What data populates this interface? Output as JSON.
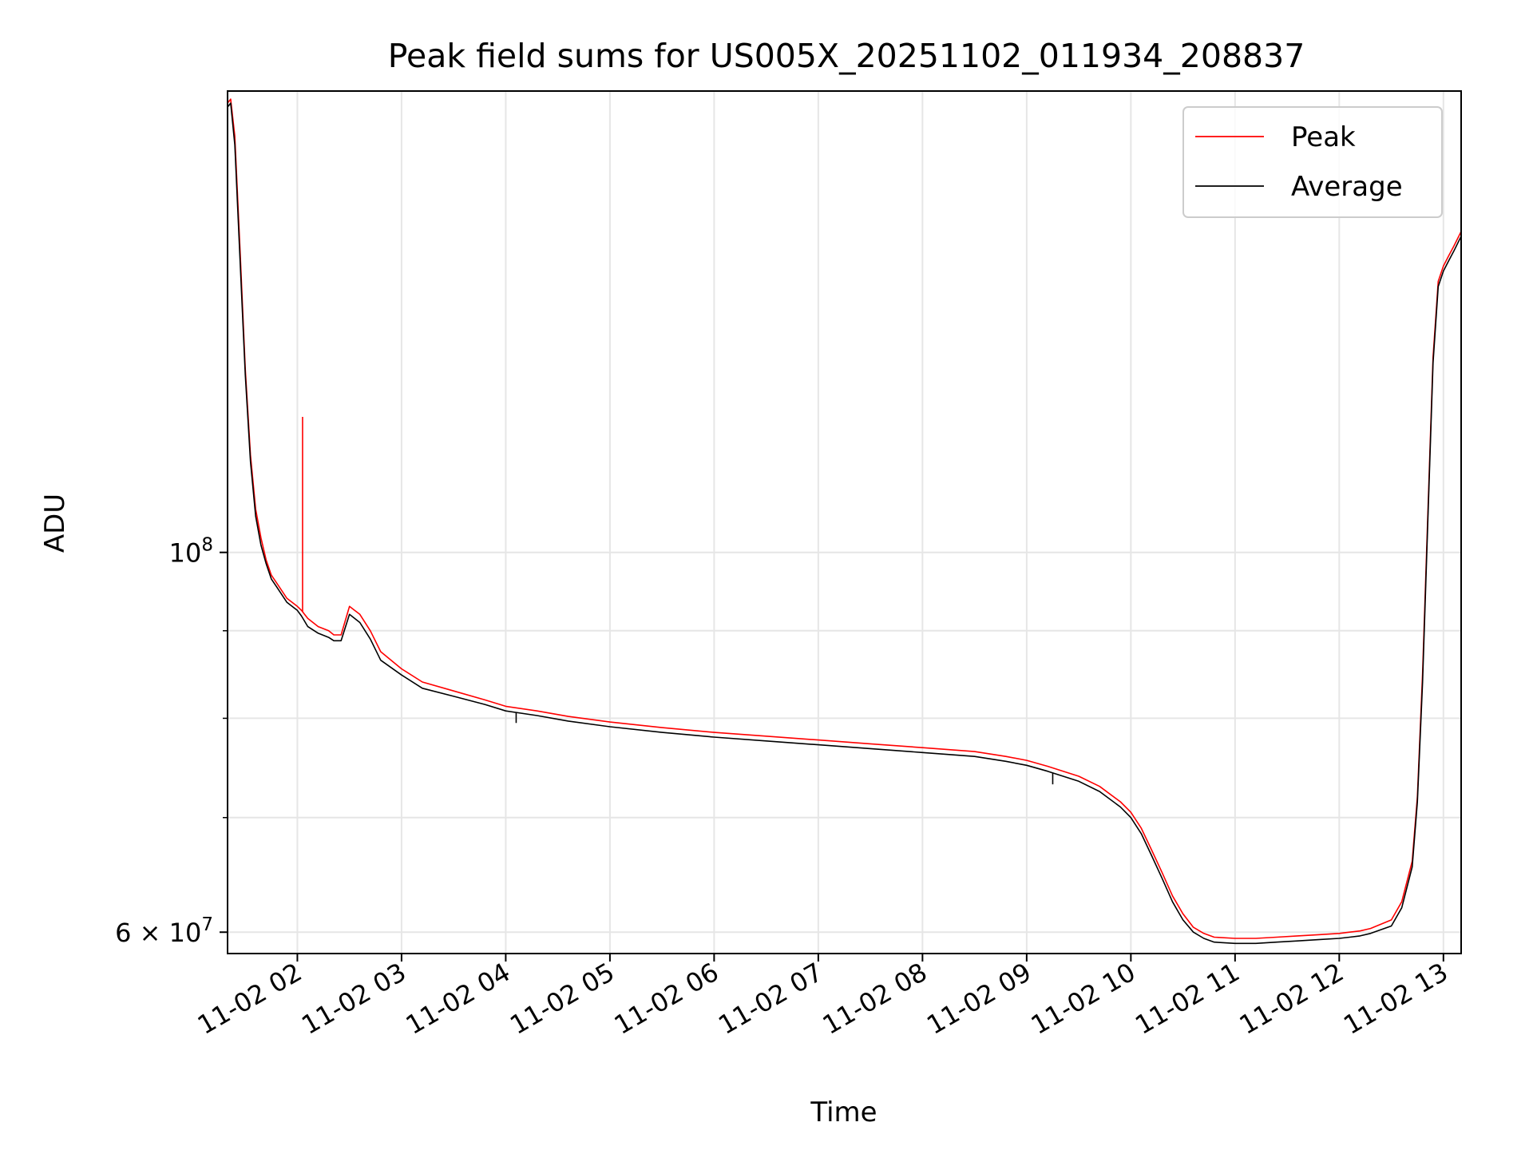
{
  "chart_data": {
    "type": "line",
    "title": "Peak field sums for US005X_20251102_011934_208837",
    "xlabel": "Time",
    "ylabel": "ADU",
    "yscale": "log",
    "xlim": [
      1.33,
      13.17
    ],
    "ylim": [
      58300000,
      186000000
    ],
    "grid": true,
    "legend_position": "upper right",
    "x_units": "hours since 2025-11-02 00:00",
    "x_ticks": [
      2,
      3,
      4,
      5,
      6,
      7,
      8,
      9,
      10,
      11,
      12,
      13
    ],
    "x_tick_labels": [
      "11-02 02",
      "11-02 03",
      "11-02 04",
      "11-02 05",
      "11-02 06",
      "11-02 07",
      "11-02 08",
      "11-02 09",
      "11-02 10",
      "11-02 11",
      "11-02 12",
      "11-02 13"
    ],
    "y_major_ticks": [
      {
        "value": 60000000,
        "label": "6 × 10^7",
        "mantissa": "6",
        "base": "10",
        "exponent": "7"
      },
      {
        "value": 100000000,
        "label": "10^8",
        "mantissa": "",
        "base": "10",
        "exponent": "8"
      }
    ],
    "y_minor_grid": [
      70000000,
      80000000,
      90000000
    ],
    "series": [
      {
        "name": "Peak",
        "color": "#ff0000",
        "x": [
          1.33,
          1.36,
          1.4,
          1.45,
          1.5,
          1.55,
          1.6,
          1.65,
          1.7,
          1.75,
          1.8,
          1.9,
          2.0,
          2.04,
          2.1,
          2.2,
          2.3,
          2.35,
          2.42,
          2.5,
          2.6,
          2.7,
          2.8,
          3.0,
          3.2,
          3.5,
          3.8,
          4.0,
          4.3,
          4.6,
          5.0,
          5.5,
          6.0,
          6.5,
          7.0,
          7.5,
          8.0,
          8.5,
          8.8,
          9.0,
          9.2,
          9.5,
          9.7,
          9.9,
          10.0,
          10.1,
          10.2,
          10.3,
          10.4,
          10.5,
          10.6,
          10.7,
          10.8,
          11.0,
          11.2,
          11.4,
          11.6,
          11.8,
          12.0,
          12.1,
          12.2,
          12.3,
          12.5,
          12.6,
          12.7,
          12.75,
          12.8,
          12.85,
          12.9,
          12.95,
          13.0,
          13.05,
          13.1,
          13.17
        ],
        "values": [
          183000000,
          184000000,
          175000000,
          150000000,
          128000000,
          114000000,
          106000000,
          102000000,
          99000000,
          97000000,
          96000000,
          94000000,
          93000000,
          92500000,
          91500000,
          90500000,
          90000000,
          89500000,
          89500000,
          93000000,
          92000000,
          90000000,
          87500000,
          85500000,
          84000000,
          83000000,
          82000000,
          81300000,
          80800000,
          80200000,
          79600000,
          79000000,
          78500000,
          78100000,
          77700000,
          77300000,
          76900000,
          76500000,
          76000000,
          75600000,
          75000000,
          74000000,
          73000000,
          71500000,
          70500000,
          69000000,
          67000000,
          65000000,
          63000000,
          61500000,
          60400000,
          59900000,
          59600000,
          59500000,
          59500000,
          59600000,
          59700000,
          59800000,
          59900000,
          60000000,
          60100000,
          60300000,
          61000000,
          62500000,
          66000000,
          72000000,
          85000000,
          105000000,
          130000000,
          144000000,
          147000000,
          149000000,
          151000000,
          154000000
        ]
      },
      {
        "name": "Average",
        "color": "#000000",
        "x": [
          1.33,
          1.36,
          1.4,
          1.45,
          1.5,
          1.55,
          1.6,
          1.65,
          1.7,
          1.75,
          1.8,
          1.9,
          2.0,
          2.04,
          2.1,
          2.2,
          2.3,
          2.35,
          2.42,
          2.5,
          2.6,
          2.7,
          2.8,
          3.0,
          3.2,
          3.5,
          3.8,
          4.0,
          4.3,
          4.6,
          5.0,
          5.5,
          6.0,
          6.5,
          7.0,
          7.5,
          8.0,
          8.5,
          8.8,
          9.0,
          9.2,
          9.5,
          9.7,
          9.9,
          10.0,
          10.1,
          10.2,
          10.3,
          10.4,
          10.5,
          10.6,
          10.7,
          10.8,
          11.0,
          11.2,
          11.4,
          11.6,
          11.8,
          12.0,
          12.1,
          12.2,
          12.3,
          12.5,
          12.6,
          12.7,
          12.75,
          12.8,
          12.85,
          12.9,
          12.95,
          13.0,
          13.05,
          13.1,
          13.17
        ],
        "values": [
          182000000,
          183000000,
          173000000,
          148000000,
          127000000,
          113000000,
          105000000,
          101000000,
          98500000,
          96500000,
          95500000,
          93500000,
          92500000,
          91800000,
          90500000,
          89700000,
          89200000,
          88800000,
          88800000,
          92000000,
          91000000,
          89000000,
          86500000,
          84800000,
          83300000,
          82400000,
          81500000,
          80800000,
          80300000,
          79700000,
          79100000,
          78500000,
          78000000,
          77600000,
          77200000,
          76800000,
          76400000,
          76000000,
          75500000,
          75100000,
          74500000,
          73500000,
          72500000,
          71000000,
          70000000,
          68500000,
          66500000,
          64500000,
          62500000,
          61000000,
          60000000,
          59500000,
          59200000,
          59100000,
          59100000,
          59200000,
          59300000,
          59400000,
          59500000,
          59600000,
          59700000,
          59900000,
          60500000,
          62000000,
          65500000,
          71500000,
          84000000,
          104000000,
          129000000,
          143000000,
          146000000,
          148000000,
          150000000,
          153000000
        ]
      }
    ],
    "annotations": [
      {
        "series": "Peak",
        "x": 2.05,
        "value": 120000000,
        "note": "narrow spike"
      },
      {
        "series": "Average",
        "x": 4.1,
        "value": 79500000,
        "note": "narrow dip"
      },
      {
        "series": "Average",
        "x": 9.25,
        "value": 73200000,
        "note": "narrow dip"
      }
    ]
  }
}
